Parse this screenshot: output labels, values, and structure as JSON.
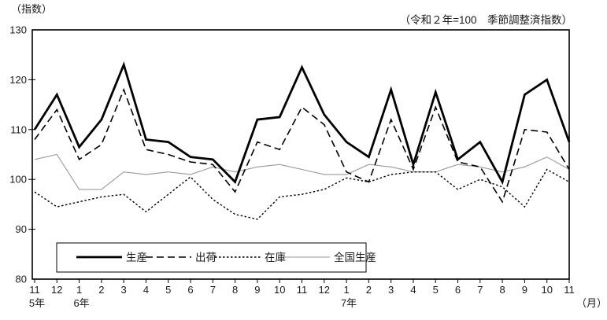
{
  "chart": {
    "y_unit_label": "（指数）",
    "subtitle": "（令和２年=100　季節調整済指数）",
    "x_unit_label": "（月）",
    "background_color": "#ffffff",
    "axis_color": "#000000",
    "colors": {
      "line_black": "#000000",
      "line_gray": "#9a9a9a"
    }
  },
  "chart_data": {
    "type": "line",
    "title": "",
    "categories": [
      "11",
      "12",
      "1",
      "2",
      "3",
      "4",
      "5",
      "6",
      "7",
      "8",
      "9",
      "10",
      "11",
      "12",
      "1",
      "2",
      "3",
      "4",
      "5",
      "6",
      "7",
      "8",
      "9",
      "10",
      "11"
    ],
    "year_labels": [
      {
        "index": 0,
        "label": "5年"
      },
      {
        "index": 2,
        "label": "6年"
      },
      {
        "index": 14,
        "label": "7年"
      }
    ],
    "ylim": [
      80,
      130
    ],
    "y_ticks": [
      80,
      90,
      100,
      110,
      120,
      130
    ],
    "grid": "none",
    "legend_position": "bottom-left-box",
    "series": [
      {
        "name": "生産",
        "key": "production",
        "style": "thick-solid",
        "color": "#000000",
        "values": [
          110,
          117,
          106.5,
          112,
          123,
          108,
          107.5,
          104.5,
          104,
          99.5,
          112,
          112.5,
          122.5,
          113,
          107.5,
          104.5,
          118,
          103,
          117.5,
          104,
          107.5,
          99.5,
          117,
          120,
          107.5
        ]
      },
      {
        "name": "出荷",
        "key": "shipments",
        "style": "dashed",
        "color": "#000000",
        "values": [
          108,
          114,
          104,
          107,
          118,
          106,
          105,
          103.5,
          103,
          97.5,
          107.5,
          106,
          114.5,
          111,
          101.5,
          99.5,
          112,
          102,
          114.5,
          103.5,
          102.5,
          95.5,
          110,
          109.5,
          102
        ]
      },
      {
        "name": "在庫",
        "key": "inventory",
        "style": "dotted",
        "color": "#000000",
        "values": [
          97.5,
          94.5,
          95.5,
          96.5,
          97,
          93.5,
          97,
          100.5,
          96,
          93,
          92,
          96.5,
          97,
          98,
          100.3,
          99.5,
          101,
          101.5,
          101.5,
          98,
          100,
          98.5,
          94.5,
          102,
          99.5
        ]
      },
      {
        "name": "全国生産",
        "key": "national-production",
        "style": "thin-solid",
        "color": "#9a9a9a",
        "values": [
          104,
          105,
          98,
          98,
          101.5,
          101,
          101.5,
          101,
          102.5,
          101.5,
          102.5,
          103,
          102,
          101,
          101,
          103,
          102.5,
          101.5,
          101.5,
          103,
          102.5,
          101.5,
          102.5,
          104.5,
          102
        ]
      }
    ]
  }
}
